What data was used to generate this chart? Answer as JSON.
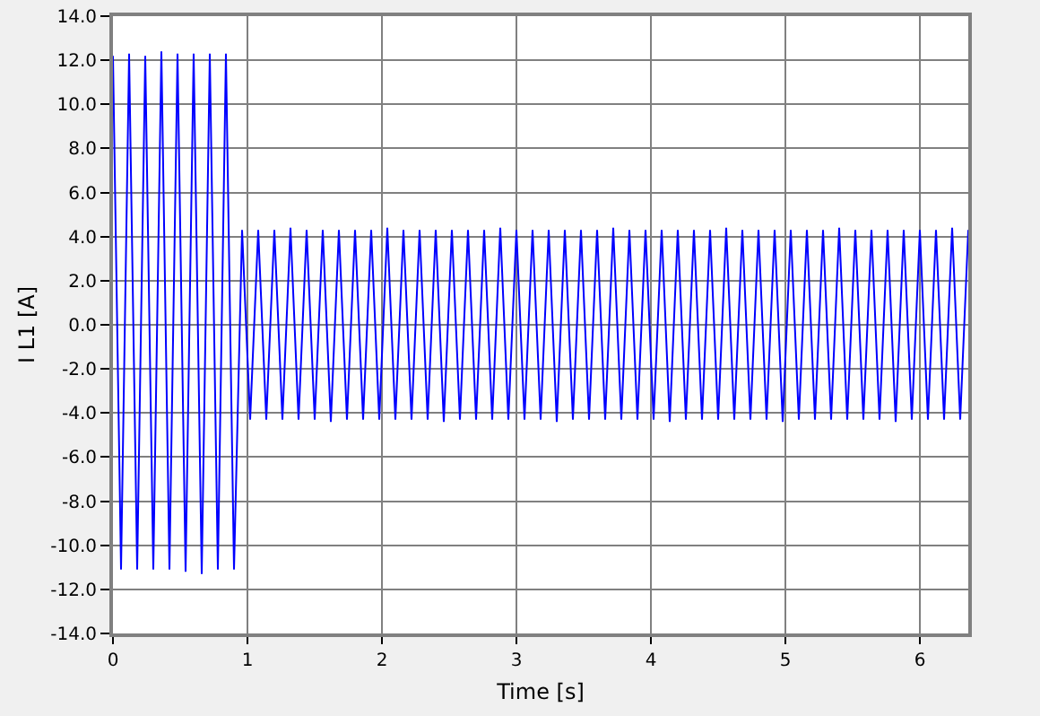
{
  "chart_data": {
    "type": "line",
    "xlabel": "Time [s]",
    "ylabel": "I L1 [A]",
    "x": [
      0,
      0.06,
      0.12,
      0.18,
      0.24,
      0.3,
      0.36,
      0.42,
      0.48,
      0.54,
      0.6,
      0.66,
      0.72,
      0.78,
      0.84,
      0.9,
      0.96,
      1.02,
      1.08,
      1.14,
      1.2,
      1.26,
      1.32,
      1.38,
      1.44,
      1.5,
      1.56,
      1.62,
      1.68,
      1.74,
      1.8,
      1.86,
      1.92,
      1.98,
      2.04,
      2.1,
      2.16,
      2.22,
      2.28,
      2.34,
      2.4,
      2.46,
      2.52,
      2.58,
      2.64,
      2.7,
      2.76,
      2.82,
      2.88,
      2.94,
      3,
      3.06,
      3.12,
      3.18,
      3.24,
      3.3,
      3.36,
      3.42,
      3.48,
      3.54,
      3.6,
      3.66,
      3.72,
      3.78,
      3.84,
      3.9,
      3.96,
      4.02,
      4.08,
      4.14,
      4.2,
      4.26,
      4.32,
      4.38,
      4.44,
      4.5,
      4.56,
      4.62,
      4.68,
      4.74,
      4.8,
      4.86,
      4.92,
      4.98,
      5.04,
      5.1,
      5.16,
      5.22,
      5.28,
      5.34,
      5.4,
      5.46,
      5.52,
      5.58,
      5.64,
      5.7,
      5.76,
      5.82,
      5.88,
      5.94,
      6,
      6.06,
      6.12,
      6.18,
      6.24,
      6.3,
      6.36
    ],
    "series": [
      {
        "color": "#0000ff",
        "values": [
          12.2,
          -11.1,
          12.3,
          -11.1,
          12.2,
          -11.1,
          12.4,
          -11.1,
          12.3,
          -11.2,
          12.3,
          -11.3,
          12.3,
          -11.1,
          12.3,
          -11.1,
          4.3,
          -4.3,
          4.3,
          -4.3,
          4.3,
          -4.3,
          4.4,
          -4.3,
          4.3,
          -4.3,
          4.3,
          -4.4,
          4.3,
          -4.3,
          4.3,
          -4.3,
          4.3,
          -4.3,
          4.4,
          -4.3,
          4.3,
          -4.3,
          4.3,
          -4.3,
          4.3,
          -4.4,
          4.3,
          -4.3,
          4.3,
          -4.3,
          4.3,
          -4.3,
          4.4,
          -4.3,
          4.3,
          -4.3,
          4.3,
          -4.3,
          4.3,
          -4.4,
          4.3,
          -4.3,
          4.3,
          -4.3,
          4.3,
          -4.3,
          4.4,
          -4.3,
          4.3,
          -4.3,
          4.3,
          -4.3,
          4.3,
          -4.4,
          4.3,
          -4.3,
          4.3,
          -4.3,
          4.3,
          -4.3,
          4.4,
          -4.3,
          4.3,
          -4.3,
          4.3,
          -4.3,
          4.3,
          -4.4,
          4.3,
          -4.3,
          4.3,
          -4.3,
          4.3,
          -4.3,
          4.4,
          -4.3,
          4.3,
          -4.3,
          4.3,
          -4.3,
          4.3,
          -4.4,
          4.3,
          -4.3,
          4.3,
          -4.3,
          4.3,
          -4.3,
          4.4,
          -4.3,
          4.3
        ]
      }
    ],
    "xlim": [
      0,
      6.36
    ],
    "xticks": [
      0,
      1,
      2,
      3,
      4,
      5,
      6
    ],
    "ylim": [
      -14,
      14
    ],
    "yticks": [
      {
        "value": -14,
        "label": "-14.0"
      },
      {
        "value": -12,
        "label": "-12.0"
      },
      {
        "value": -10,
        "label": "-10.0"
      },
      {
        "value": -8,
        "label": "-8.0"
      },
      {
        "value": -6,
        "label": "-6.0"
      },
      {
        "value": -4,
        "label": "-4.0"
      },
      {
        "value": -2,
        "label": "-2.0"
      },
      {
        "value": 0,
        "label": "0.0"
      },
      {
        "value": 2,
        "label": "2.0"
      },
      {
        "value": 4,
        "label": "4.0"
      },
      {
        "value": 6,
        "label": "6.0"
      },
      {
        "value": 8,
        "label": "8.0"
      },
      {
        "value": 10,
        "label": "10.0"
      },
      {
        "value": 12,
        "label": "12.0"
      },
      {
        "value": 14,
        "label": "14.0"
      }
    ],
    "grid": true,
    "marker": "none",
    "line_style": "solid"
  }
}
